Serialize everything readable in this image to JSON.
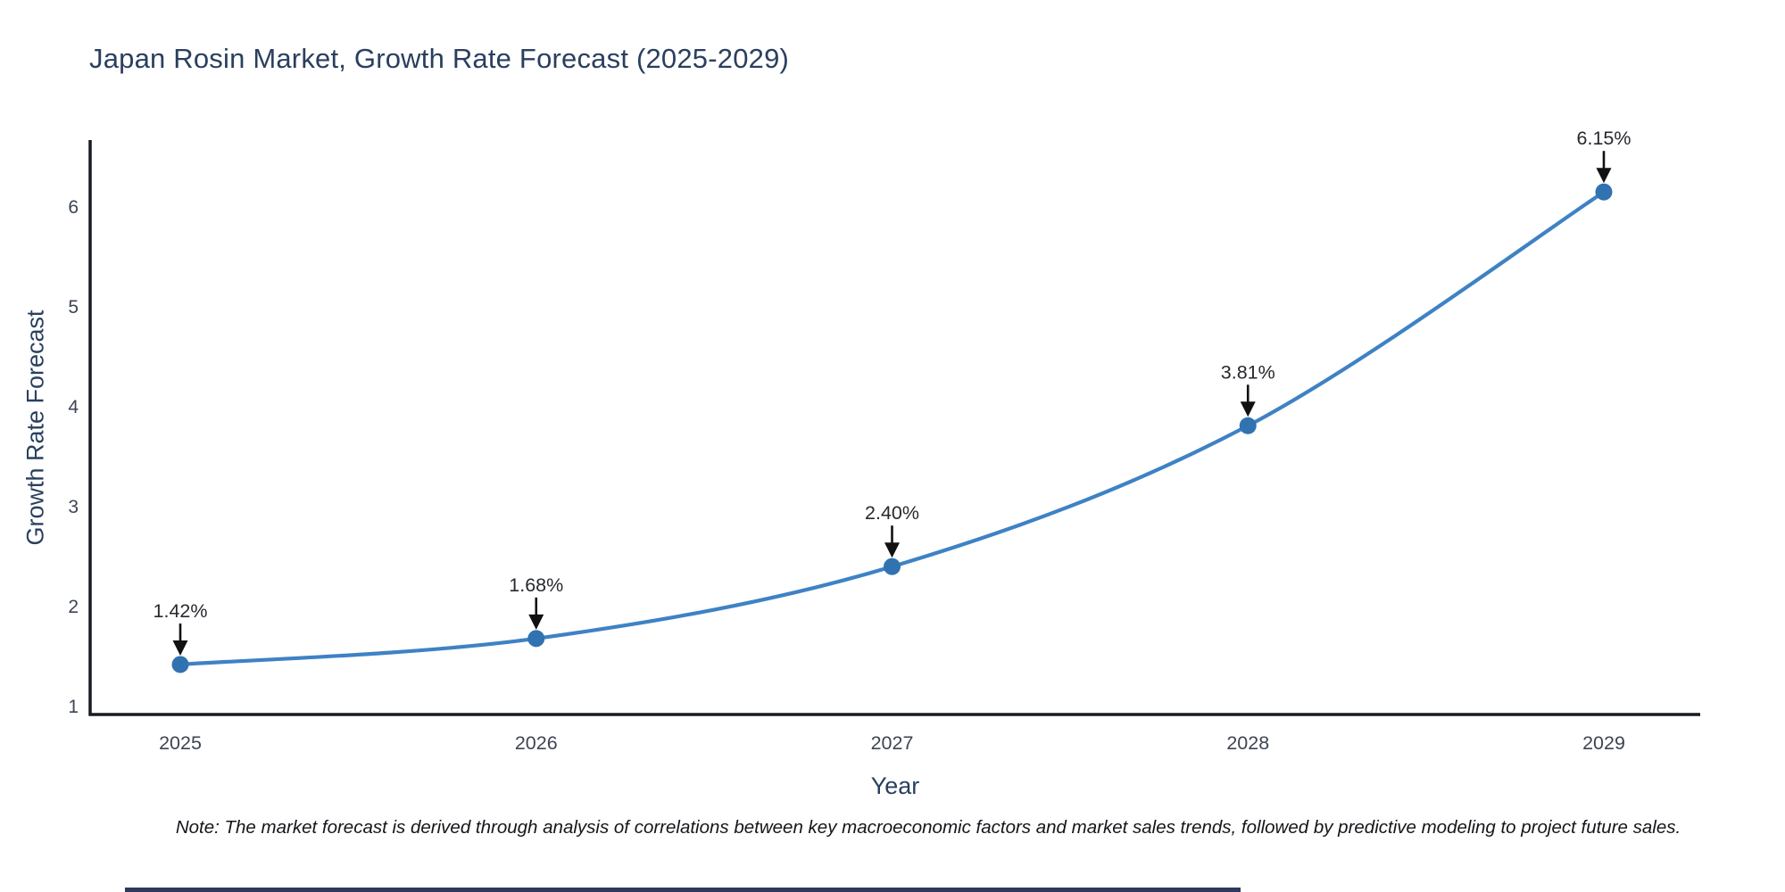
{
  "header": {
    "title": "Japan Rosin Market, Growth Rate Forecast (2025-2029)"
  },
  "chart_data": {
    "type": "line",
    "title": "Japan Rosin Market, Growth Rate Forecast (2025-2029)",
    "xlabel": "Year",
    "ylabel": "Growth Rate Forecast",
    "x": [
      2025,
      2026,
      2027,
      2028,
      2029
    ],
    "x_tick_labels": [
      "2025",
      "2026",
      "2027",
      "2028",
      "2029"
    ],
    "series": [
      {
        "name": "Growth Rate Forecast",
        "values": [
          1.42,
          1.68,
          2.4,
          3.81,
          6.15
        ]
      }
    ],
    "point_labels": [
      "1.42%",
      "1.68%",
      "2.40%",
      "3.81%",
      "6.15%"
    ],
    "y_ticks": [
      1,
      2,
      3,
      4,
      5,
      6
    ],
    "y_tick_labels": [
      "1",
      "2",
      "3",
      "4",
      "5",
      "6"
    ],
    "ylim": [
      0.92,
      6.66
    ],
    "grid": false,
    "legend": "none",
    "line_shape": "spline",
    "annotations_have_arrows": true,
    "colors": {
      "line": "#3e82c4",
      "marker": "#3172b1",
      "axis": "#161b22",
      "heading_text": "#2a3f5f",
      "tick_text": "#3d4554",
      "annotation_text": "#26292e",
      "arrow": "#111111"
    }
  },
  "footer": {
    "note": "Note: The market forecast is derived through analysis of correlations between key macroeconomic factors and market sales trends, followed by predictive modeling to project future sales.",
    "bar_color": "#2c3a5c"
  }
}
